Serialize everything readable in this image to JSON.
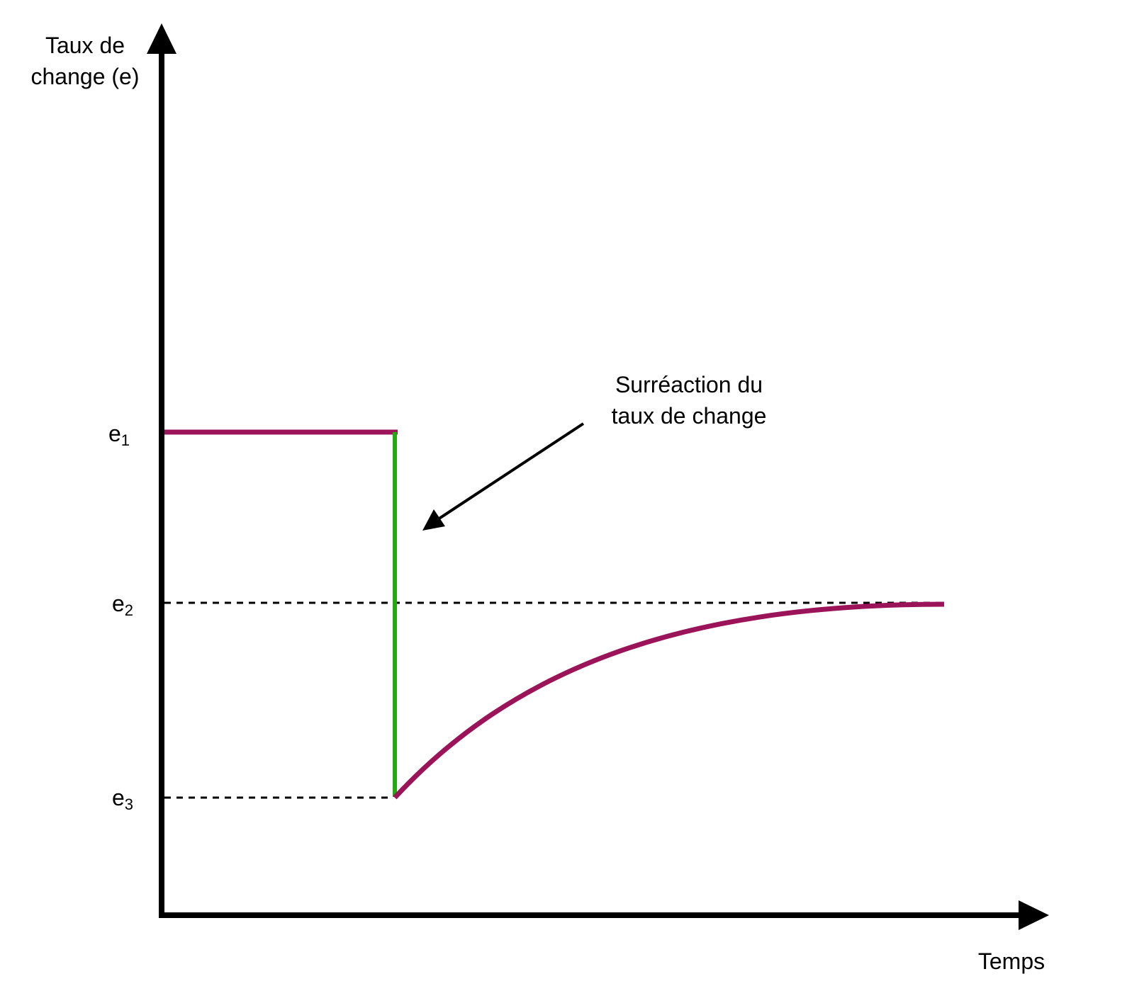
{
  "y_axis": {
    "label": [
      "Taux de",
      "change (e)"
    ]
  },
  "x_axis": {
    "label": "Temps"
  },
  "levels": [
    {
      "base": "e",
      "sub": "1"
    },
    {
      "base": "e",
      "sub": "2"
    },
    {
      "base": "e",
      "sub": "3"
    }
  ],
  "annotation": [
    "Surréaction du",
    "taux de change"
  ]
}
